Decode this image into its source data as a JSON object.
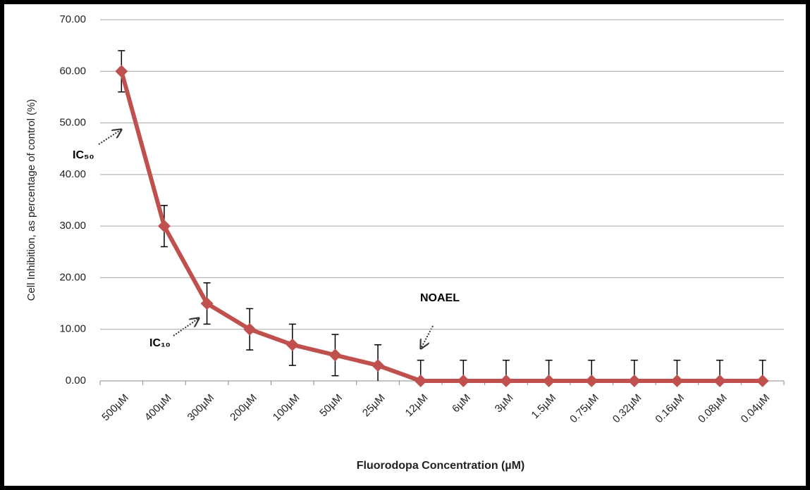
{
  "chart_data": {
    "type": "line",
    "x_label": "Fluorodopa Concentration (µM)",
    "y_label": "Cell Inhibition, as percentage of control  (%)",
    "categories": [
      "500µM",
      "400µM",
      "300µM",
      "200µM",
      "100µM",
      "50µM",
      "25µM",
      "12µM",
      "6µM",
      "3µM",
      "1.5µM",
      "0.75µM",
      "0.32µM",
      "0.16µM",
      "0.08µM",
      "0.04µM"
    ],
    "series": [
      {
        "color": "#c0504d",
        "values": [
          60,
          30,
          15,
          10,
          7,
          5,
          3,
          0,
          0,
          0,
          0,
          0,
          0,
          0,
          0,
          0
        ],
        "errors": [
          4,
          4,
          4,
          4,
          4,
          4,
          4,
          4,
          4,
          4,
          4,
          4,
          4,
          4,
          4,
          4
        ]
      }
    ],
    "ylim": [
      0,
      70
    ],
    "yticks": [
      {
        "value": 0,
        "label": "0.00"
      },
      {
        "value": 10,
        "label": "10.00"
      },
      {
        "value": 20,
        "label": "20.00"
      },
      {
        "value": 30,
        "label": "30.00"
      },
      {
        "value": 40,
        "label": "40.00"
      },
      {
        "value": 50,
        "label": "50.00"
      },
      {
        "value": 60,
        "label": "60.00"
      },
      {
        "value": 70,
        "label": "70.00"
      }
    ],
    "grid": true,
    "annotations": [
      "IC₅₀",
      "IC₁₀",
      "NOAEL"
    ]
  }
}
